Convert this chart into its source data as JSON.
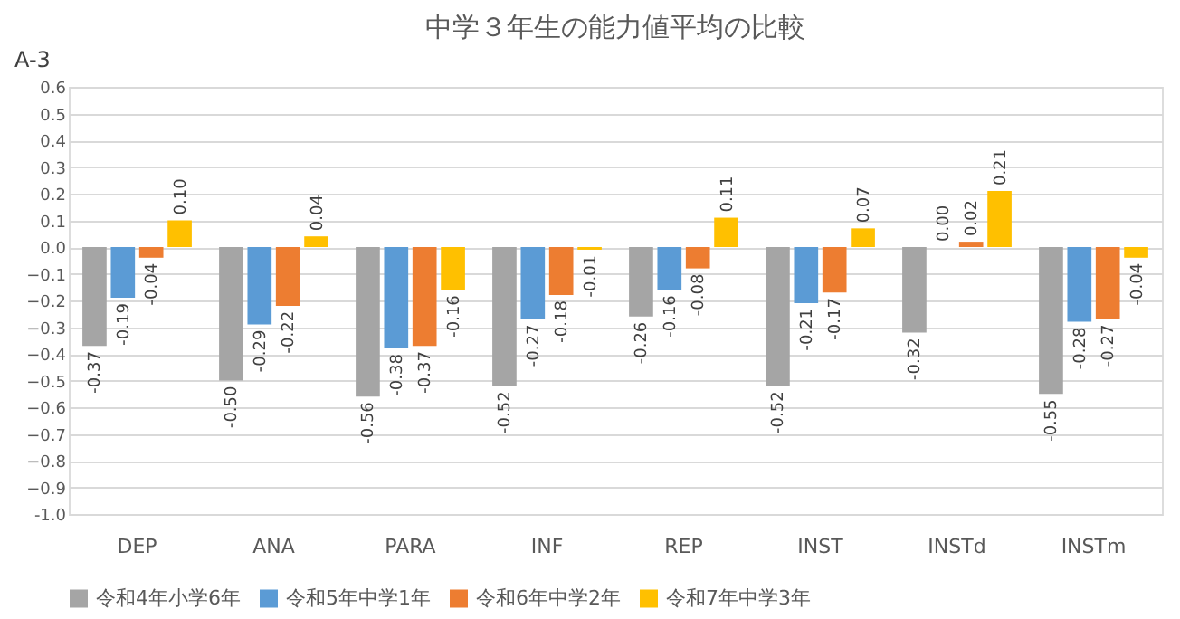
{
  "chart_data": {
    "type": "bar",
    "title": "中学３年生の能力値平均の比較",
    "annotations": [
      "A-3"
    ],
    "categories": [
      "DEP",
      "ANA",
      "PARA",
      "INF",
      "REP",
      "INST",
      "INSTd",
      "INSTm"
    ],
    "series": [
      {
        "name": "令和4年小学6年",
        "color": "#a5a5a5",
        "values": [
          -0.37,
          -0.5,
          -0.56,
          -0.52,
          -0.26,
          -0.52,
          -0.32,
          -0.55
        ],
        "value_labels": [
          "-0.37",
          "-0.50",
          "-0.56",
          "-0.52",
          "-0.26",
          "-0.52",
          "-0.32",
          "-0.55"
        ]
      },
      {
        "name": "令和5年中学1年",
        "color": "#5b9bd5",
        "values": [
          -0.19,
          -0.29,
          -0.38,
          -0.27,
          -0.16,
          -0.21,
          0.0,
          -0.28
        ],
        "value_labels": [
          "-0.19",
          "-0.29",
          "-0.38",
          "-0.27",
          "-0.16",
          "-0.21",
          "0.00",
          "-0.28"
        ]
      },
      {
        "name": "令和6年中学2年",
        "color": "#ed7d31",
        "values": [
          -0.04,
          -0.22,
          -0.37,
          -0.18,
          -0.08,
          -0.17,
          0.02,
          -0.27
        ],
        "value_labels": [
          "-0.04",
          "-0.22",
          "-0.37",
          "-0.18",
          "-0.08",
          "-0.17",
          "0.02",
          "-0.27"
        ]
      },
      {
        "name": "令和7年中学3年",
        "color": "#ffc000",
        "values": [
          0.1,
          0.04,
          -0.16,
          -0.01,
          0.11,
          0.07,
          0.21,
          -0.04
        ],
        "value_labels": [
          "0.10",
          "0.04",
          "-0.16",
          "-0.01",
          "0.11",
          "0.07",
          "0.21",
          "-0.04"
        ]
      }
    ],
    "ylim": [
      -1.0,
      0.6
    ],
    "yticks": [
      {
        "value": -1.0,
        "label": "-1.0"
      },
      -0.9,
      -0.8,
      -0.7,
      -0.6,
      -0.5,
      -0.4,
      -0.3,
      -0.2,
      -0.1,
      {
        "value": 0,
        "label": "0.0"
      },
      0.1,
      0.2,
      0.3,
      0.4,
      0.5,
      0.6
    ],
    "grid": "y",
    "legend": "bottom"
  }
}
